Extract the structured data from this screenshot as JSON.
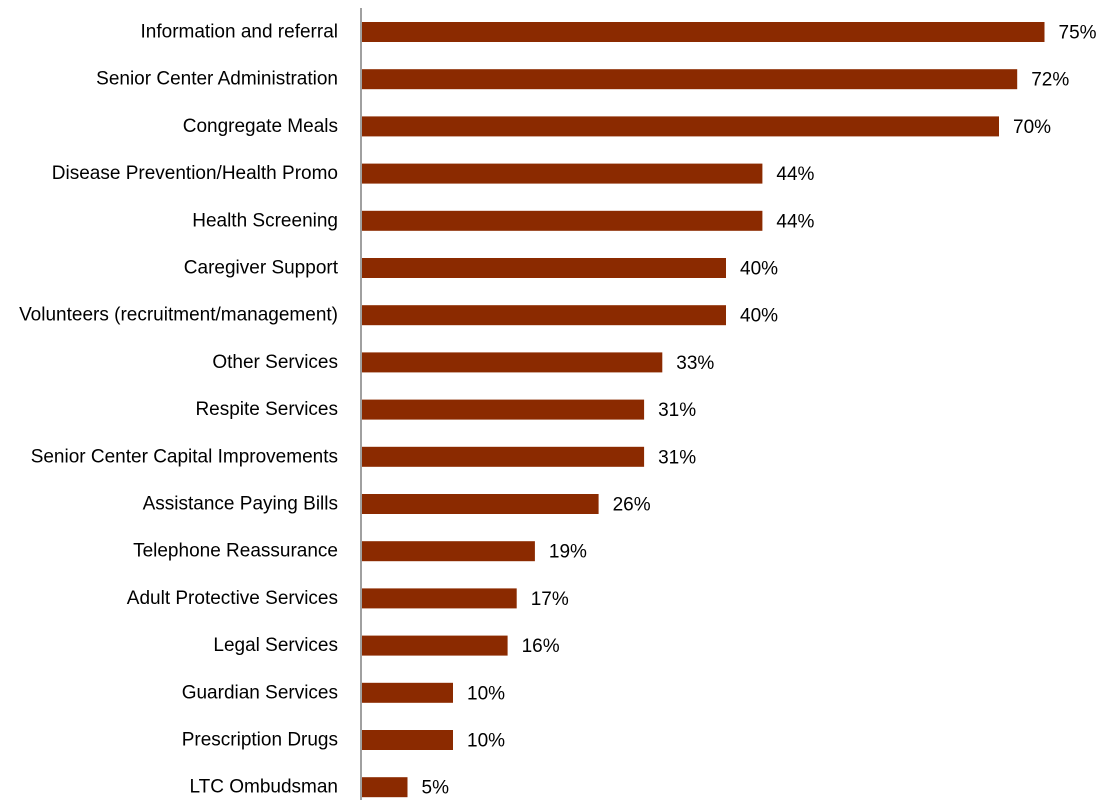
{
  "chart_data": {
    "type": "bar",
    "orientation": "horizontal",
    "categories": [
      "Information and referral",
      "Senior Center Administration",
      "Congregate Meals",
      "Disease Prevention/Health Promo",
      "Health Screening",
      "Caregiver Support",
      "Volunteers (recruitment/management)",
      "Other Services",
      "Respite Services",
      "Senior Center Capital Improvements",
      "Assistance Paying Bills",
      "Telephone Reassurance",
      "Adult Protective Services",
      "Legal Services",
      "Guardian Services",
      "Prescription Drugs",
      "LTC Ombudsman"
    ],
    "values": [
      75,
      72,
      70,
      44,
      44,
      40,
      40,
      33,
      31,
      31,
      26,
      19,
      17,
      16,
      10,
      10,
      5
    ],
    "value_labels": [
      "75%",
      "72%",
      "70%",
      "44%",
      "44%",
      "40%",
      "40%",
      "33%",
      "31%",
      "31%",
      "26%",
      "19%",
      "17%",
      "16%",
      "10%",
      "10%",
      "5%"
    ],
    "unit": "%",
    "xlim": [
      0,
      80
    ],
    "grid": false,
    "legend": "none",
    "bar_color": "#8B2A00",
    "axis_color": "#808080"
  }
}
